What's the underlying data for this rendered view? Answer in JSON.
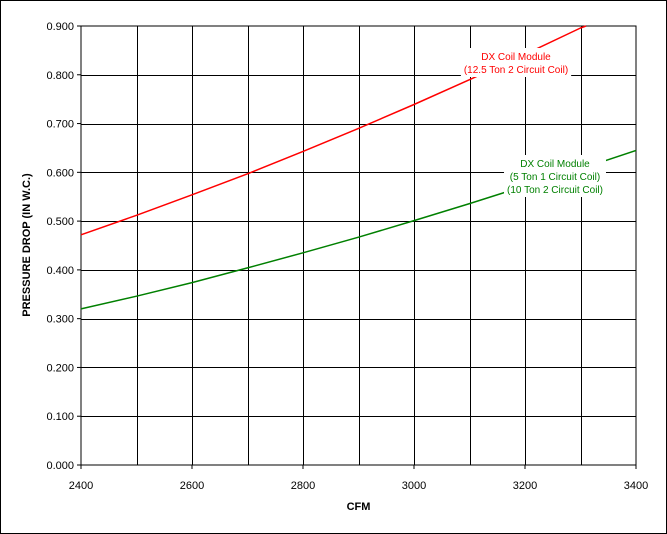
{
  "chart_data": {
    "type": "line",
    "title": "",
    "xlabel": "CFM",
    "ylabel": "PRESSURE DROP (IN W.C.)",
    "xlim": [
      2400,
      3400
    ],
    "ylim": [
      0,
      0.9
    ],
    "xticks": [
      2400,
      2600,
      2800,
      3000,
      3200,
      3400
    ],
    "xtick_labels": [
      "2400",
      "2600",
      "2800",
      "3000",
      "3200",
      "3400"
    ],
    "yticks": [
      0,
      0.1,
      0.2,
      0.3,
      0.4,
      0.5,
      0.6,
      0.7,
      0.8,
      0.9
    ],
    "ytick_labels": [
      "0.000",
      "0.100",
      "0.200",
      "0.300",
      "0.400",
      "0.500",
      "0.600",
      "0.700",
      "0.800",
      "0.900"
    ],
    "x_minor_step": 100,
    "grid": true,
    "legend": "none",
    "series": [
      {
        "color": "#ff0000",
        "x": [
          2400,
          2500,
          2600,
          2700,
          2800,
          2900,
          3000,
          3100,
          3200,
          3300,
          3310
        ],
        "y": [
          0.472,
          0.512,
          0.554,
          0.597,
          0.643,
          0.69,
          0.739,
          0.79,
          0.842,
          0.896,
          0.9
        ],
        "label_lines": [
          "DX Coil Module",
          "(12.5 Ton 2 Circuit Coil)"
        ]
      },
      {
        "color": "#008000",
        "x": [
          2400,
          2500,
          2600,
          2700,
          2800,
          2900,
          3000,
          3100,
          3200,
          3300,
          3400
        ],
        "y": [
          0.32,
          0.346,
          0.374,
          0.404,
          0.435,
          0.467,
          0.501,
          0.536,
          0.572,
          0.607,
          0.645
        ],
        "label_lines": [
          "DX Coil Module",
          "(5 Ton 1 Circuit Coil)",
          "(10 Ton 2 Circuit Coil)"
        ]
      }
    ]
  }
}
